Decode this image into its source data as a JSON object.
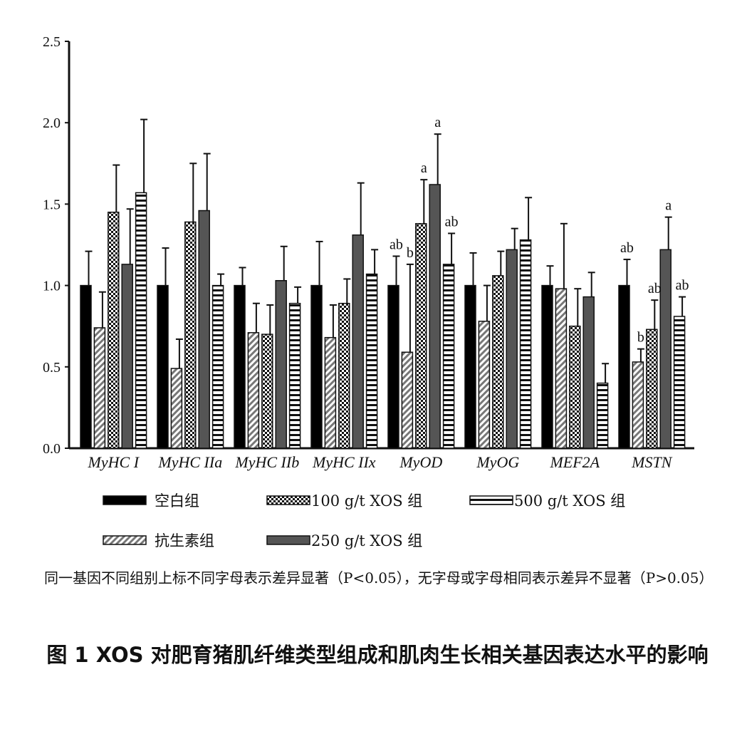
{
  "chart_data": {
    "type": "bar",
    "categories": [
      "MyHC I",
      "MyHC IIa",
      "MyHC IIb",
      "MyHC IIx",
      "MyOD",
      "MyOG",
      "MEF2A",
      "MSTN"
    ],
    "ylim": [
      0,
      2.5
    ],
    "yticks": [
      "0.0",
      "0.5",
      "1.0",
      "1.5",
      "2.0",
      "2.5"
    ],
    "series": [
      {
        "name": "空白组",
        "values": [
          1.0,
          1.0,
          1.0,
          1.0,
          1.0,
          1.0,
          1.0,
          1.0
        ],
        "errors": [
          0.21,
          0.23,
          0.11,
          0.27,
          0.18,
          0.2,
          0.12,
          0.16
        ]
      },
      {
        "name": "抗生素组",
        "values": [
          0.74,
          0.49,
          0.71,
          0.68,
          0.59,
          0.78,
          0.98,
          0.53
        ],
        "errors": [
          0.22,
          0.18,
          0.18,
          0.2,
          0.54,
          0.22,
          0.4,
          0.08
        ]
      },
      {
        "name": "100 g/t XOS 组",
        "values": [
          1.45,
          1.39,
          0.7,
          0.89,
          1.38,
          1.06,
          0.75,
          0.73
        ],
        "errors": [
          0.29,
          0.36,
          0.18,
          0.15,
          0.27,
          0.15,
          0.23,
          0.18
        ]
      },
      {
        "name": "250 g/t XOS 组",
        "values": [
          1.13,
          1.46,
          1.03,
          1.31,
          1.62,
          1.22,
          0.93,
          1.22
        ],
        "errors": [
          0.34,
          0.35,
          0.21,
          0.32,
          0.31,
          0.13,
          0.15,
          0.2
        ]
      },
      {
        "name": "500 g/t XOS 组",
        "values": [
          1.57,
          1.0,
          0.89,
          1.07,
          1.13,
          1.28,
          0.4,
          0.81
        ],
        "errors": [
          0.45,
          0.07,
          0.1,
          0.15,
          0.19,
          0.26,
          0.12,
          0.12
        ]
      }
    ],
    "significance": [
      {
        "category": 4,
        "series": 0,
        "label": "ab"
      },
      {
        "category": 4,
        "series": 1,
        "label": "b"
      },
      {
        "category": 4,
        "series": 2,
        "label": "a"
      },
      {
        "category": 4,
        "series": 3,
        "label": "a"
      },
      {
        "category": 4,
        "series": 4,
        "label": "ab"
      },
      {
        "category": 7,
        "series": 0,
        "label": "ab"
      },
      {
        "category": 7,
        "series": 1,
        "label": "b"
      },
      {
        "category": 7,
        "series": 2,
        "label": "ab"
      },
      {
        "category": 7,
        "series": 3,
        "label": "a"
      },
      {
        "category": 7,
        "series": 4,
        "label": "ab"
      }
    ],
    "legend": [
      "空白组",
      "100 g/t XOS 组",
      "500 g/t XOS 组",
      "抗生素组",
      "250 g/t XOS 组"
    ]
  },
  "note": "同一基因不同组别上标不同字母表示差异显著（P<0.05），无字母或字母相同表示差异不显著（P>0.05）",
  "caption": "图 1  XOS 对肥育猪肌纤维类型组成和肌肉生长相关基因表达水平的影响"
}
